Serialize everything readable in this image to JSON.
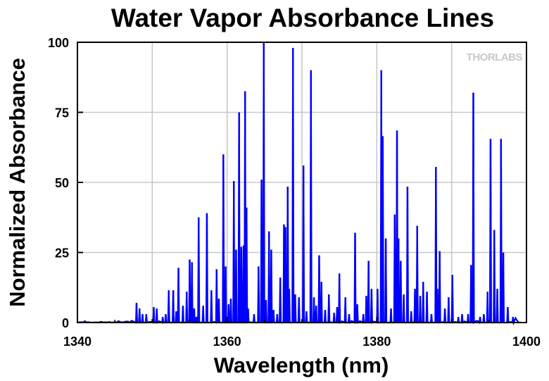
{
  "chart_data": {
    "type": "line",
    "title": "Water Vapor Absorbance Lines",
    "xlabel": "Wavelength (nm)",
    "ylabel": "Normalized Absorbance",
    "xlim": [
      1340,
      1400
    ],
    "ylim": [
      0,
      100
    ],
    "xticks": [
      "1340",
      "1360",
      "1380",
      "1400"
    ],
    "yticks": [
      "0",
      "25",
      "50",
      "75",
      "100"
    ],
    "grid": true,
    "line_color": "#0000ff",
    "logo": "THORLABS",
    "peaks": [
      {
        "x": 1347.9,
        "y": 7
      },
      {
        "x": 1348.3,
        "y": 5
      },
      {
        "x": 1348.7,
        "y": 3
      },
      {
        "x": 1349.2,
        "y": 3
      },
      {
        "x": 1350.2,
        "y": 5.5
      },
      {
        "x": 1350.6,
        "y": 5
      },
      {
        "x": 1351.4,
        "y": 2
      },
      {
        "x": 1351.8,
        "y": 3
      },
      {
        "x": 1352.2,
        "y": 11.5
      },
      {
        "x": 1352.8,
        "y": 11.5
      },
      {
        "x": 1353.2,
        "y": 4
      },
      {
        "x": 1353.5,
        "y": 19.5
      },
      {
        "x": 1354.1,
        "y": 6
      },
      {
        "x": 1354.6,
        "y": 11
      },
      {
        "x": 1355.0,
        "y": 22.5
      },
      {
        "x": 1355.3,
        "y": 21.5
      },
      {
        "x": 1355.6,
        "y": 5
      },
      {
        "x": 1355.9,
        "y": 2
      },
      {
        "x": 1356.2,
        "y": 37.5
      },
      {
        "x": 1356.8,
        "y": 6
      },
      {
        "x": 1357.3,
        "y": 39
      },
      {
        "x": 1357.9,
        "y": 11.5
      },
      {
        "x": 1358.6,
        "y": 19
      },
      {
        "x": 1358.9,
        "y": 8.5
      },
      {
        "x": 1359.5,
        "y": 60
      },
      {
        "x": 1359.8,
        "y": 20
      },
      {
        "x": 1360.2,
        "y": 6.5
      },
      {
        "x": 1360.5,
        "y": 8.5
      },
      {
        "x": 1360.9,
        "y": 50.5
      },
      {
        "x": 1361.2,
        "y": 26
      },
      {
        "x": 1361.6,
        "y": 75
      },
      {
        "x": 1361.9,
        "y": 27
      },
      {
        "x": 1362.2,
        "y": 27.5
      },
      {
        "x": 1362.4,
        "y": 82.5
      },
      {
        "x": 1362.6,
        "y": 41
      },
      {
        "x": 1362.8,
        "y": 5
      },
      {
        "x": 1363.6,
        "y": 3
      },
      {
        "x": 1364.2,
        "y": 20
      },
      {
        "x": 1364.6,
        "y": 51
      },
      {
        "x": 1364.9,
        "y": 100
      },
      {
        "x": 1365.2,
        "y": 8
      },
      {
        "x": 1365.6,
        "y": 32.5
      },
      {
        "x": 1365.9,
        "y": 26
      },
      {
        "x": 1366.2,
        "y": 4.5
      },
      {
        "x": 1366.7,
        "y": 3
      },
      {
        "x": 1367.1,
        "y": 16
      },
      {
        "x": 1367.6,
        "y": 35
      },
      {
        "x": 1367.8,
        "y": 34
      },
      {
        "x": 1368.1,
        "y": 48.5
      },
      {
        "x": 1368.3,
        "y": 12
      },
      {
        "x": 1368.8,
        "y": 98
      },
      {
        "x": 1369.1,
        "y": 10
      },
      {
        "x": 1369.6,
        "y": 9
      },
      {
        "x": 1370.2,
        "y": 56
      },
      {
        "x": 1370.6,
        "y": 4
      },
      {
        "x": 1371.2,
        "y": 90
      },
      {
        "x": 1371.6,
        "y": 9
      },
      {
        "x": 1371.9,
        "y": 6
      },
      {
        "x": 1372.3,
        "y": 24
      },
      {
        "x": 1372.6,
        "y": 14.5
      },
      {
        "x": 1373.1,
        "y": 4.5
      },
      {
        "x": 1373.6,
        "y": 10
      },
      {
        "x": 1374.3,
        "y": 3.5
      },
      {
        "x": 1374.7,
        "y": 5.5
      },
      {
        "x": 1375.0,
        "y": 17.5
      },
      {
        "x": 1375.8,
        "y": 9
      },
      {
        "x": 1376.3,
        "y": 3
      },
      {
        "x": 1377.1,
        "y": 32
      },
      {
        "x": 1377.4,
        "y": 6.5
      },
      {
        "x": 1378.2,
        "y": 3
      },
      {
        "x": 1378.6,
        "y": 9.5
      },
      {
        "x": 1378.9,
        "y": 22
      },
      {
        "x": 1379.3,
        "y": 12
      },
      {
        "x": 1380.1,
        "y": 12
      },
      {
        "x": 1380.6,
        "y": 90
      },
      {
        "x": 1380.8,
        "y": 66.5
      },
      {
        "x": 1381.2,
        "y": 30
      },
      {
        "x": 1381.9,
        "y": 5
      },
      {
        "x": 1382.4,
        "y": 38.5
      },
      {
        "x": 1382.7,
        "y": 68.5
      },
      {
        "x": 1382.9,
        "y": 30
      },
      {
        "x": 1383.2,
        "y": 22
      },
      {
        "x": 1383.6,
        "y": 10
      },
      {
        "x": 1384.1,
        "y": 48.5
      },
      {
        "x": 1384.6,
        "y": 4
      },
      {
        "x": 1385.1,
        "y": 12
      },
      {
        "x": 1385.4,
        "y": 34.5
      },
      {
        "x": 1385.8,
        "y": 9.5
      },
      {
        "x": 1386.2,
        "y": 14.5
      },
      {
        "x": 1386.7,
        "y": 11
      },
      {
        "x": 1387.3,
        "y": 3
      },
      {
        "x": 1387.9,
        "y": 55.5
      },
      {
        "x": 1388.1,
        "y": 12
      },
      {
        "x": 1388.4,
        "y": 25.5
      },
      {
        "x": 1389.1,
        "y": 5
      },
      {
        "x": 1389.6,
        "y": 9
      },
      {
        "x": 1390.1,
        "y": 17
      },
      {
        "x": 1390.9,
        "y": 2
      },
      {
        "x": 1391.4,
        "y": 3
      },
      {
        "x": 1392.2,
        "y": 3
      },
      {
        "x": 1392.6,
        "y": 20.5
      },
      {
        "x": 1392.9,
        "y": 82
      },
      {
        "x": 1393.8,
        "y": 2
      },
      {
        "x": 1394.3,
        "y": 3
      },
      {
        "x": 1394.8,
        "y": 11
      },
      {
        "x": 1395.2,
        "y": 65.5
      },
      {
        "x": 1395.7,
        "y": 33
      },
      {
        "x": 1396.1,
        "y": 12
      },
      {
        "x": 1396.6,
        "y": 65.5
      },
      {
        "x": 1396.9,
        "y": 25
      },
      {
        "x": 1397.5,
        "y": 5.5
      },
      {
        "x": 1398.2,
        "y": 2
      }
    ]
  }
}
